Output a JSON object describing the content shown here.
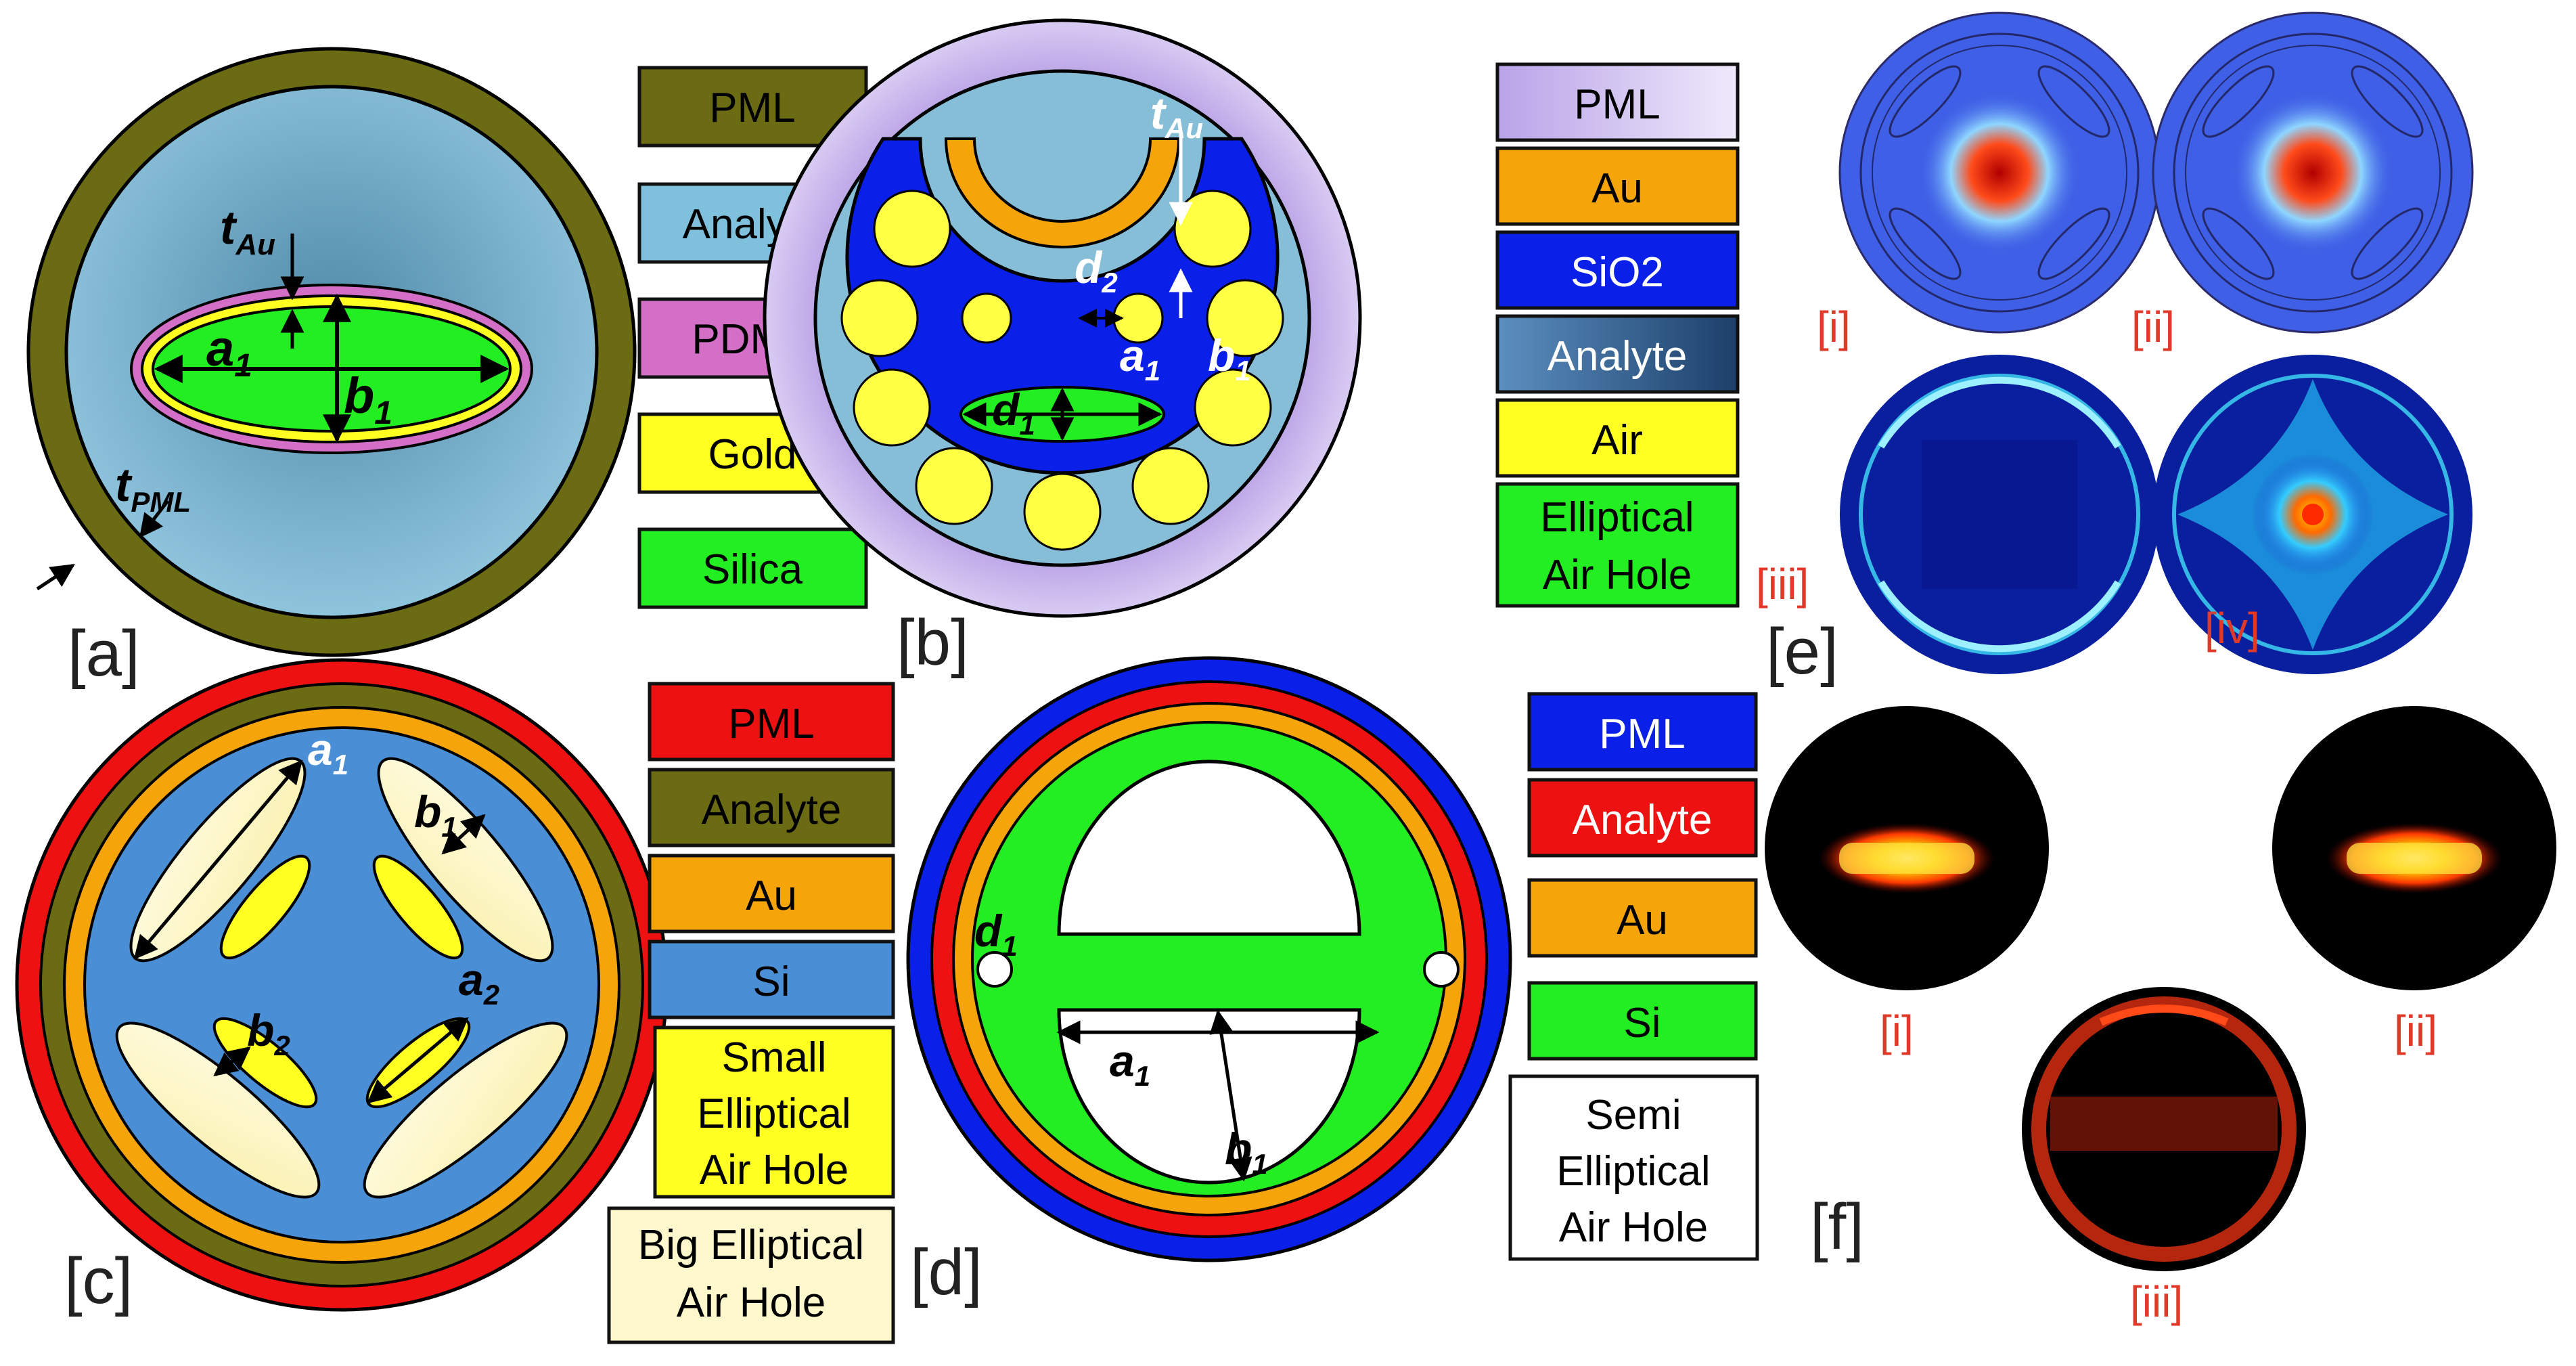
{
  "panels": {
    "a": {
      "tag": "[a]",
      "labels": {
        "t_au": "t",
        "t_au_sub": "Au",
        "a1": "a",
        "a1_sub": "1",
        "b1": "b",
        "b1_sub": "1",
        "t_pml": "t",
        "t_pml_sub": "PML"
      },
      "legend": [
        "PML",
        "Analyte",
        "PDMS",
        "Gold",
        "Silica"
      ]
    },
    "b": {
      "tag": "[b]",
      "labels": {
        "t_au": "t",
        "t_au_sub": "Au",
        "d2": "d",
        "d2_sub": "2",
        "a1": "a",
        "a1_sub": "1",
        "b1": "b",
        "b1_sub": "1",
        "d1": "d",
        "d1_sub": "1"
      },
      "legend": [
        "PML",
        "Au",
        "SiO2",
        "Analyte",
        "Air",
        "Elliptical",
        "Air Hole"
      ]
    },
    "c": {
      "tag": "[c]",
      "labels": {
        "a1": "a",
        "a1_sub": "1",
        "b1": "b",
        "b1_sub": "1",
        "a2": "a",
        "a2_sub": "2",
        "b2": "b",
        "b2_sub": "2"
      },
      "legend": [
        "PML",
        "Analyte",
        "Au",
        "Si",
        "Small",
        "Elliptical",
        "Air Hole",
        "Big Elliptical",
        "Air Hole"
      ]
    },
    "d": {
      "tag": "[d]",
      "labels": {
        "d1": "d",
        "d1_sub": "1",
        "a1": "a",
        "a1_sub": "1",
        "b1": "b",
        "b1_sub": "1"
      },
      "legend": [
        "PML",
        "Analyte",
        "Au",
        "Si",
        "Semi",
        "Elliptical",
        "Air Hole"
      ]
    },
    "e": {
      "tag": "[e]",
      "sublabels": [
        "[i]",
        "[ii]",
        "[iii]",
        "[iv]"
      ]
    },
    "f": {
      "tag": "[f]",
      "sublabels": [
        "[i]",
        "[ii]",
        "[iii]"
      ]
    }
  },
  "colors": {
    "pml_olive": "#6b6b14",
    "analyte_blue": "#7fb6d3",
    "pdms_pink": "#d46fc8",
    "gold_yellow": "#ffff22",
    "silica_green": "#22ee22",
    "sio2_blue": "#0a1fe8",
    "au_orange": "#f5a50a",
    "pml_red": "#ee1111",
    "si_blue": "#4a8fd6",
    "air_light": "#fdf7c8",
    "pml_lavender": "#cdb9ec"
  }
}
